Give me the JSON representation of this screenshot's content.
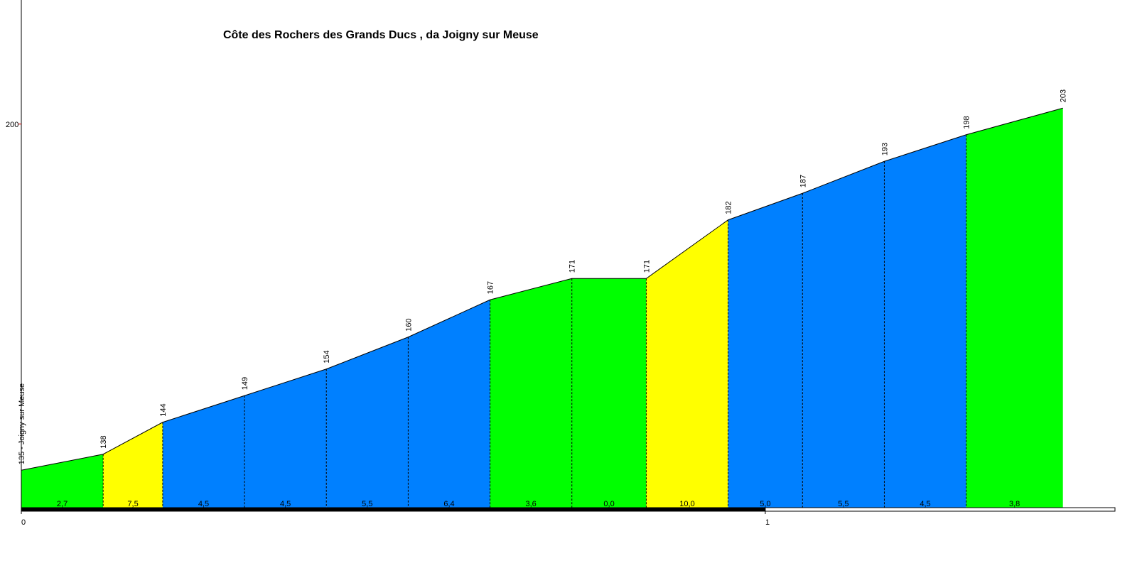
{
  "chart_data": {
    "type": "profile",
    "title": "Côte des Rochers des Grands Ducs , da Joigny sur Meuse",
    "x": [
      0,
      0.11,
      0.19,
      0.3,
      0.41,
      0.52,
      0.63,
      0.74,
      0.84,
      0.95,
      1.05,
      1.16,
      1.27,
      1.4
    ],
    "values": [
      135,
      138,
      144,
      149,
      154,
      160,
      167,
      171,
      171,
      182,
      187,
      193,
      198,
      203
    ],
    "value_labels": [
      "135 - Joigny sur Meuse",
      "138",
      "144",
      "149",
      "154",
      "160",
      "167",
      "171",
      "171",
      "182",
      "187",
      "193",
      "198",
      "203"
    ],
    "segments": {
      "values": [
        2.7,
        7.5,
        4.5,
        4.5,
        5.5,
        6.4,
        3.6,
        0.0,
        10.0,
        5.0,
        5.5,
        4.5,
        3.8
      ],
      "value_labels": [
        "2,7",
        "7,5",
        "4,5",
        "4,5",
        "5,5",
        "6,4",
        "3,6",
        "0,0",
        "10,0",
        "5,0",
        "5,5",
        "4,5",
        "3,8"
      ],
      "colors": [
        "#00ff00",
        "#ffff00",
        "#0080ff",
        "#0080ff",
        "#0080ff",
        "#0080ff",
        "#00ff00",
        "#00ff00",
        "#ffff00",
        "#0080ff",
        "#0080ff",
        "#0080ff",
        "#00ff00"
      ]
    },
    "xlim": [
      0,
      1.47
    ],
    "xticks": [
      0,
      1
    ],
    "ylim": [
      127.7,
      223.3
    ],
    "yticks": [
      200
    ]
  }
}
